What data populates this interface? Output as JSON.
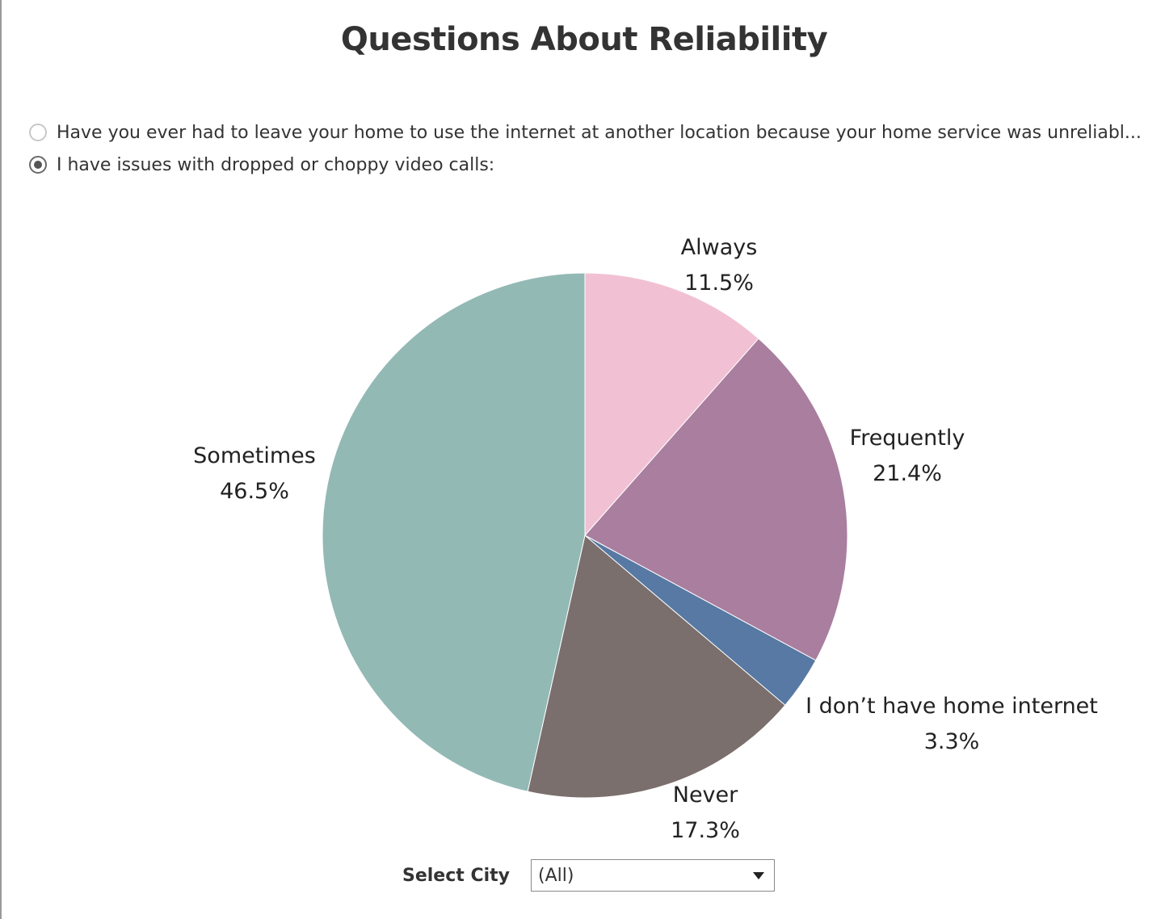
{
  "header": {
    "title": "Questions About Reliability"
  },
  "question_selector": {
    "options": [
      {
        "label": "Have you ever had to leave your home to use the internet at another location because your home service was unreliabl...",
        "selected": false
      },
      {
        "label": "I have issues with dropped or choppy video calls:",
        "selected": true
      }
    ]
  },
  "chart_data": {
    "type": "pie",
    "title": "Questions About Reliability",
    "slices": [
      {
        "name": "Always",
        "value": 11.5,
        "display": "11.5%",
        "color": "#f1c1d3"
      },
      {
        "name": "Frequently",
        "value": 21.4,
        "display": "21.4%",
        "color": "#a97e9e"
      },
      {
        "name": "I don’t have home internet",
        "value": 3.3,
        "display": "3.3%",
        "color": "#5779a3"
      },
      {
        "name": "Never",
        "value": 17.3,
        "display": "17.3%",
        "color": "#7a6f6d"
      },
      {
        "name": "Sometimes",
        "value": 46.5,
        "display": "46.5%",
        "color": "#93b9b5"
      }
    ],
    "start": "12 o'clock",
    "direction": "clockwise"
  },
  "filter": {
    "label": "Select City",
    "value": "(All)",
    "icon": "chevron-down-icon"
  }
}
